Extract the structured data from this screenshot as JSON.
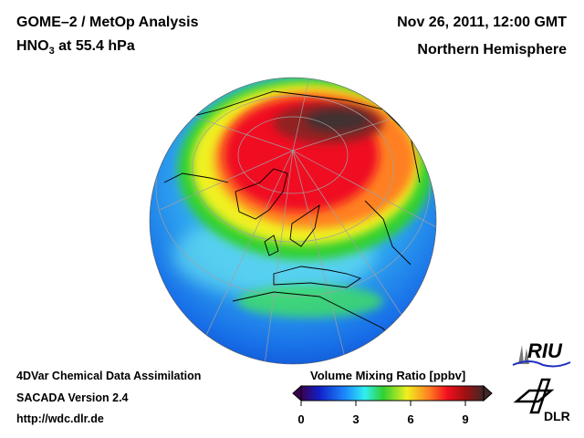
{
  "header": {
    "title_line1": "GOME–2 / MetOp Analysis",
    "species": "HNO",
    "species_subscript": "3",
    "level": "at 55.4 hPa",
    "datetime": "Nov 26, 2011, 12:00 GMT",
    "region": "Northern Hemisphere"
  },
  "footer": {
    "line1": "4DVar Chemical Data Assimilation",
    "line2": "SACADA Version 2.4",
    "line3": "http://wdc.dlr.de"
  },
  "colorbar": {
    "title": "Volume Mixing Ratio [ppbv]",
    "range": [
      0,
      10
    ],
    "ticks": [
      "0",
      "3",
      "6",
      "9"
    ],
    "colors": [
      "#3a0050",
      "#1020c8",
      "#1e90ff",
      "#30f0f0",
      "#30d030",
      "#f0f020",
      "#ff8020",
      "#f01020",
      "#a01010",
      "#402828"
    ]
  },
  "logos": {
    "riu": "RIU",
    "dlr": "DLR"
  }
}
